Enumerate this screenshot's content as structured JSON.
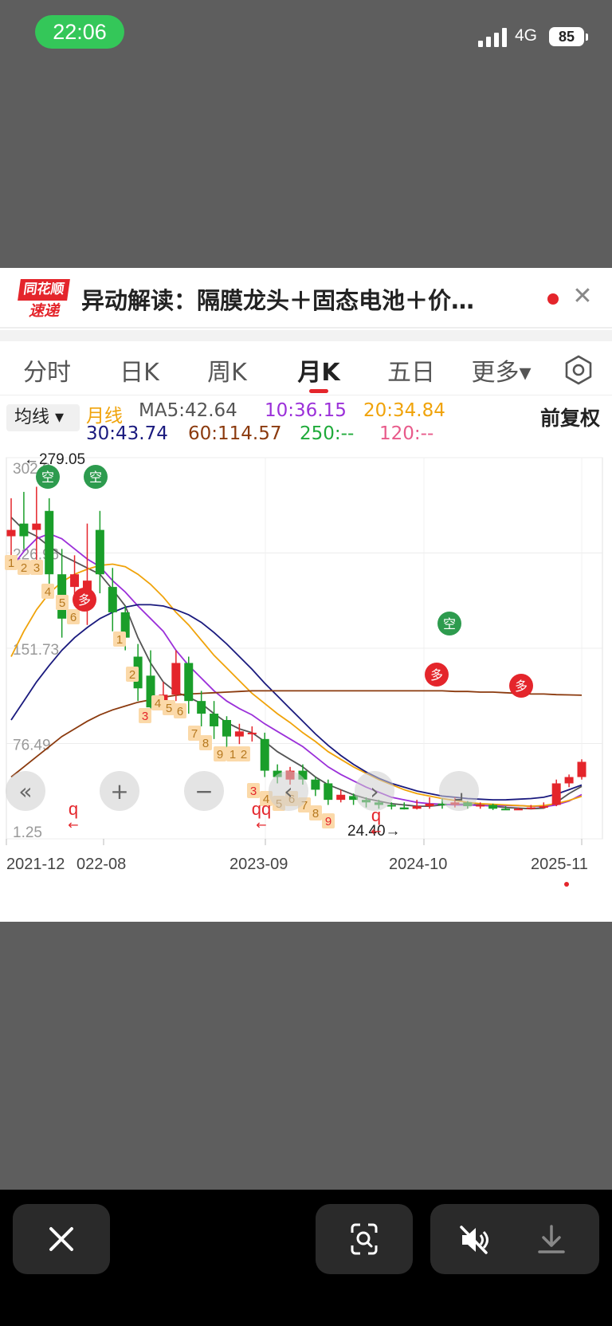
{
  "status_bar": {
    "time": "22:06",
    "network": "4G",
    "battery": "85"
  },
  "news": {
    "logo_top": "同花顺",
    "logo_bottom": "速递",
    "title": "异动解读：隔膜龙头＋固态电池＋价…"
  },
  "tabs": [
    "分时",
    "日K",
    "周K",
    "月K",
    "五日",
    "更多▾"
  ],
  "active_tab": "月K",
  "legend": {
    "ma_button": "均线 ▾",
    "line_label": "月线",
    "ma5": "MA5:42.64",
    "ma10": "10:36.15",
    "ma20": "20:34.84",
    "ma30": "30:43.74",
    "ma60": "60:114.57",
    "ma250": "250:--",
    "ma120": "120:--",
    "adjust": "前复权"
  },
  "chart_data": {
    "type": "candlestick",
    "y_tick_labels": [
      "302.0",
      "226.96",
      "151.73",
      "76.49",
      "1.25"
    ],
    "ylim": [
      1.25,
      302.0
    ],
    "x_tick_labels": [
      "2021-12",
      "022-08",
      "2023-09",
      "2024-10",
      "2025-11"
    ],
    "high_annotation": "←279.05",
    "low_annotation": "24.40→",
    "candles": [
      {
        "o": 240,
        "c": 245,
        "h": 270,
        "l": 225
      },
      {
        "o": 250,
        "c": 240,
        "h": 275,
        "l": 230
      },
      {
        "o": 245,
        "c": 250,
        "h": 279.05,
        "l": 220
      },
      {
        "o": 260,
        "c": 210,
        "h": 270,
        "l": 200
      },
      {
        "o": 210,
        "c": 175,
        "h": 230,
        "l": 160
      },
      {
        "o": 200,
        "c": 210,
        "h": 225,
        "l": 185
      },
      {
        "o": 185,
        "c": 205,
        "h": 250,
        "l": 170
      },
      {
        "o": 245,
        "c": 210,
        "h": 260,
        "l": 195
      },
      {
        "o": 200,
        "c": 180,
        "h": 215,
        "l": 165
      },
      {
        "o": 180,
        "c": 160,
        "h": 185,
        "l": 150
      },
      {
        "o": 145,
        "c": 120,
        "h": 155,
        "l": 110
      },
      {
        "o": 130,
        "c": 105,
        "h": 150,
        "l": 95
      },
      {
        "o": 110,
        "c": 115,
        "h": 125,
        "l": 105
      },
      {
        "o": 115,
        "c": 140,
        "h": 150,
        "l": 110
      },
      {
        "o": 140,
        "c": 110,
        "h": 145,
        "l": 100
      },
      {
        "o": 110,
        "c": 100,
        "h": 118,
        "l": 90
      },
      {
        "o": 100,
        "c": 90,
        "h": 110,
        "l": 80
      },
      {
        "o": 95,
        "c": 82,
        "h": 98,
        "l": 72
      },
      {
        "o": 82,
        "c": 86,
        "h": 92,
        "l": 76
      },
      {
        "o": 85,
        "c": 85,
        "h": 90,
        "l": 78
      },
      {
        "o": 80,
        "c": 55,
        "h": 85,
        "l": 50
      },
      {
        "o": 55,
        "c": 50,
        "h": 60,
        "l": 45
      },
      {
        "o": 48,
        "c": 55,
        "h": 58,
        "l": 44
      },
      {
        "o": 55,
        "c": 48,
        "h": 60,
        "l": 44
      },
      {
        "o": 48,
        "c": 40,
        "h": 50,
        "l": 35
      },
      {
        "o": 45,
        "c": 32,
        "h": 48,
        "l": 28
      },
      {
        "o": 32,
        "c": 36,
        "h": 40,
        "l": 30
      },
      {
        "o": 35,
        "c": 32,
        "h": 37,
        "l": 28
      },
      {
        "o": 32,
        "c": 30,
        "h": 34,
        "l": 26
      },
      {
        "o": 30,
        "c": 28,
        "h": 32,
        "l": 25
      },
      {
        "o": 28,
        "c": 27,
        "h": 30,
        "l": 24.4
      },
      {
        "o": 26,
        "c": 24.5,
        "h": 30,
        "l": 24.4
      },
      {
        "o": 25,
        "c": 27,
        "h": 32,
        "l": 24.4
      },
      {
        "o": 27,
        "c": 29,
        "h": 34,
        "l": 25
      },
      {
        "o": 29,
        "c": 28,
        "h": 33,
        "l": 25
      },
      {
        "o": 28,
        "c": 30,
        "h": 34,
        "l": 26
      },
      {
        "o": 30,
        "c": 27,
        "h": 31,
        "l": 25
      },
      {
        "o": 27,
        "c": 28,
        "h": 30,
        "l": 25
      },
      {
        "o": 28,
        "c": 25,
        "h": 29,
        "l": 24
      },
      {
        "o": 25,
        "c": 24.5,
        "h": 27,
        "l": 24
      },
      {
        "o": 24.5,
        "c": 25,
        "h": 26,
        "l": 24
      },
      {
        "o": 25,
        "c": 26,
        "h": 28,
        "l": 24.5
      },
      {
        "o": 26,
        "c": 27,
        "h": 30,
        "l": 25
      },
      {
        "o": 28,
        "c": 45,
        "h": 48,
        "l": 27
      },
      {
        "o": 45,
        "c": 50,
        "h": 52,
        "l": 42
      },
      {
        "o": 50,
        "c": 62,
        "h": 64,
        "l": 48
      }
    ],
    "ma_series": [
      {
        "name": "MA5",
        "color": "#555555",
        "values": [
          255,
          245,
          240,
          232,
          225,
          220,
          215,
          210,
          198,
          185,
          160,
          140,
          125,
          117,
          113,
          108,
          100,
          93,
          88,
          85,
          78,
          70,
          64,
          58,
          50,
          44,
          40,
          36,
          33,
          31,
          29,
          28,
          27,
          27,
          28,
          28.5,
          28.5,
          28,
          27,
          26,
          25.5,
          25,
          25.5,
          30,
          37,
          42.64
        ]
      },
      {
        "name": "MA10",
        "color": "#9b30d9",
        "values": [
          215,
          228,
          238,
          242,
          238,
          230,
          222,
          216,
          205,
          196,
          185,
          175,
          165,
          150,
          138,
          128,
          118,
          110,
          104,
          99,
          92,
          86,
          80,
          74,
          66,
          58,
          52,
          47,
          42,
          38,
          34,
          32,
          30,
          29,
          28.5,
          28,
          28,
          27.5,
          27.5,
          27.5,
          27.5,
          27,
          26.5,
          28,
          31,
          36.15
        ]
      },
      {
        "name": "MA20",
        "color": "#f0a30a",
        "values": [
          145,
          165,
          182,
          195,
          204,
          210,
          214,
          217,
          218,
          216,
          210,
          202,
          192,
          180,
          170,
          158,
          146,
          136,
          126,
          116,
          108,
          100,
          93,
          85,
          78,
          70,
          64,
          58,
          53,
          48,
          44,
          40,
          37,
          35,
          33,
          31.5,
          30,
          29,
          28.5,
          28,
          27.5,
          27,
          27.5,
          29,
          31.5,
          34.84
        ]
      },
      {
        "name": "MA30",
        "color": "#1a1a7e",
        "values": [
          95,
          110,
          125,
          138,
          150,
          160,
          168,
          175,
          180,
          184,
          186,
          186,
          185,
          182,
          178,
          172,
          164,
          155,
          145,
          135,
          124,
          114,
          104,
          94,
          84,
          75,
          67,
          60,
          54,
          49,
          45,
          42,
          39,
          37,
          35,
          34,
          33,
          32.5,
          32,
          32,
          32.5,
          33,
          34,
          36.5,
          40,
          43.74
        ]
      },
      {
        "name": "MA60",
        "color": "#8b3a0e",
        "values": [
          50,
          58,
          66,
          74,
          82,
          88,
          94,
          99,
          103,
          106,
          109,
          111,
          113,
          114.5,
          115.5,
          116,
          116.5,
          117,
          117.5,
          118,
          118,
          118,
          118,
          118,
          118,
          118,
          118,
          118,
          118,
          118,
          118,
          118,
          118,
          118,
          118,
          117.5,
          117.5,
          117,
          117,
          116.5,
          116,
          115.5,
          115.5,
          115,
          114.8,
          114.57
        ]
      }
    ],
    "counter_labels": [
      "1",
      "2",
      "3",
      "4",
      "5",
      "6",
      "1",
      "2",
      "3",
      "4",
      "5",
      "6",
      "7",
      "8",
      "9",
      "1",
      "2",
      "3",
      "4",
      "5",
      "6",
      "7",
      "8",
      "9"
    ],
    "signal_markers": [
      "空",
      "空",
      "多",
      "空",
      "多",
      "多"
    ],
    "q_markers": [
      "q",
      "qq",
      "q"
    ],
    "controls": [
      "«",
      "+",
      "−",
      "‹",
      "›",
      "⌟"
    ]
  }
}
